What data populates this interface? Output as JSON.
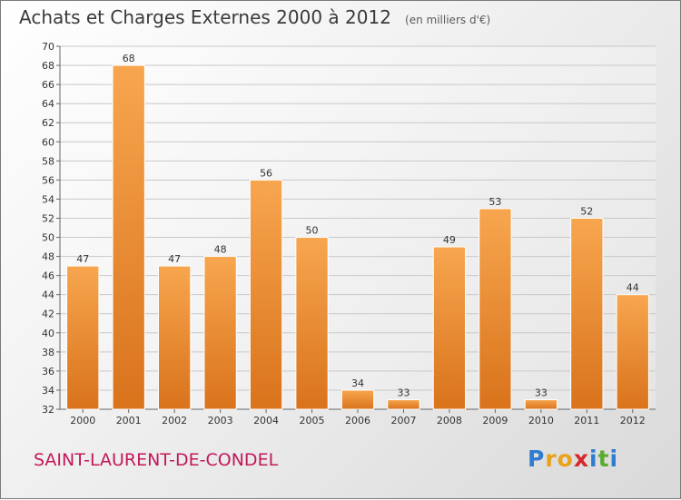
{
  "header": {
    "title": "Achats et Charges Externes 2000 à 2012",
    "subtitle": "(en milliers d'€)"
  },
  "footer": {
    "commune": "SAINT-LAURENT-DE-CONDEL",
    "logo_letters": [
      {
        "ch": "P",
        "color": "#2e7dd1"
      },
      {
        "ch": "r",
        "color": "#e8a21b"
      },
      {
        "ch": "o",
        "color": "#e8a21b"
      },
      {
        "ch": "x",
        "color": "#d8262b"
      },
      {
        "ch": "i",
        "color": "#2e7dd1"
      },
      {
        "ch": "t",
        "color": "#5aab2e"
      },
      {
        "ch": "i",
        "color": "#2e7dd1"
      }
    ]
  },
  "chart_data": {
    "type": "bar",
    "title": "Achats et Charges Externes 2000 à 2012",
    "subtitle": "(en milliers d'€)",
    "categories": [
      "2000",
      "2001",
      "2002",
      "2003",
      "2004",
      "2005",
      "2006",
      "2007",
      "2008",
      "2009",
      "2010",
      "2011",
      "2012"
    ],
    "values": [
      47,
      68,
      47,
      48,
      56,
      50,
      34,
      33,
      49,
      53,
      33,
      52,
      44
    ],
    "ylim": [
      32,
      70
    ],
    "ytick_step": 2,
    "grid": true,
    "data_labels": true,
    "colors": {
      "bar_light": "#f7a64f",
      "bar_dark": "#d9731c",
      "bar_edge": "#ffffff",
      "grid": "#c8c8c8",
      "axis": "#666666"
    }
  }
}
